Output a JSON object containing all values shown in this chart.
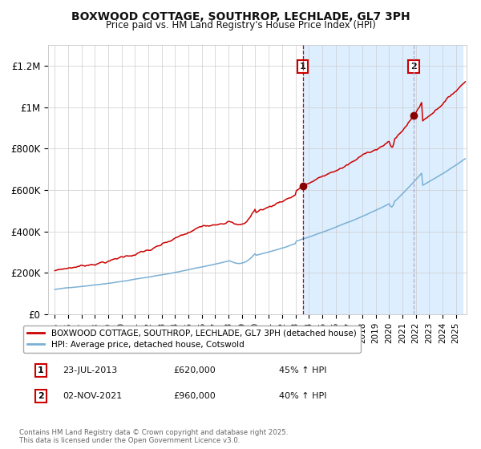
{
  "title": "BOXWOOD COTTAGE, SOUTHROP, LECHLADE, GL7 3PH",
  "subtitle": "Price paid vs. HM Land Registry's House Price Index (HPI)",
  "red_label": "BOXWOOD COTTAGE, SOUTHROP, LECHLADE, GL7 3PH (detached house)",
  "blue_label": "HPI: Average price, detached house, Cotswold",
  "annotation1_date": "23-JUL-2013",
  "annotation1_price": "£620,000",
  "annotation1_pct": "45% ↑ HPI",
  "annotation2_date": "02-NOV-2021",
  "annotation2_price": "£960,000",
  "annotation2_pct": "40% ↑ HPI",
  "marker1_x": 2013.55,
  "marker1_y": 620000,
  "marker2_x": 2021.84,
  "marker2_y": 960000,
  "vline1_x": 2013.55,
  "vline2_x": 2021.84,
  "shading_start": 2013.55,
  "shading_end": 2025.5,
  "ylim": [
    0,
    1300000
  ],
  "xlim": [
    1994.5,
    2025.8
  ],
  "yticks": [
    0,
    200000,
    400000,
    600000,
    800000,
    1000000,
    1200000
  ],
  "ytick_labels": [
    "£0",
    "£200K",
    "£400K",
    "£600K",
    "£800K",
    "£1M",
    "£1.2M"
  ],
  "xticks": [
    1995,
    1996,
    1997,
    1998,
    1999,
    2000,
    2001,
    2002,
    2003,
    2004,
    2005,
    2006,
    2007,
    2008,
    2009,
    2010,
    2011,
    2012,
    2013,
    2014,
    2015,
    2016,
    2017,
    2018,
    2019,
    2020,
    2021,
    2022,
    2023,
    2024,
    2025
  ],
  "red_color": "#cc0000",
  "blue_color": "#7ab0d4",
  "shading_color": "#ddeeff",
  "grid_color": "#cccccc",
  "background_color": "#ffffff",
  "footnote": "Contains HM Land Registry data © Crown copyright and database right 2025.\nThis data is licensed under the Open Government Licence v3.0.",
  "label1": "1",
  "label2": "2"
}
